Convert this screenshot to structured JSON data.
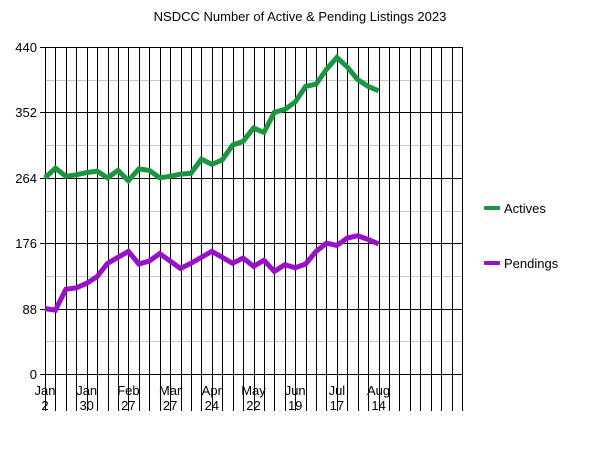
{
  "chart_data": {
    "type": "line",
    "title": "NSDCC Number of Active & Pending Listings 2023",
    "xlabel": "",
    "ylabel": "",
    "ylim": [
      0,
      440
    ],
    "y_ticks": [
      0,
      88,
      176,
      264,
      352,
      440
    ],
    "x_tick_labels": [
      {
        "month": "Jan",
        "day": "2"
      },
      {
        "month": "Jan",
        "day": "30"
      },
      {
        "month": "Feb",
        "day": "27"
      },
      {
        "month": "Mar",
        "day": "27"
      },
      {
        "month": "Apr",
        "day": "24"
      },
      {
        "month": "May",
        "day": "22"
      },
      {
        "month": "Jun",
        "day": "19"
      },
      {
        "month": "Jul",
        "day": "17"
      },
      {
        "month": "Aug",
        "day": "14"
      }
    ],
    "x_tick_every": 4,
    "x_slots": 40,
    "grid": true,
    "legend_position": "right",
    "series": [
      {
        "name": "Actives",
        "color": "#1a9641",
        "values": [
          264,
          277,
          266,
          268,
          271,
          273,
          264,
          274,
          260,
          276,
          274,
          264,
          266,
          269,
          270,
          289,
          282,
          288,
          308,
          313,
          331,
          325,
          352,
          356,
          366,
          387,
          390,
          410,
          426,
          413,
          396,
          387,
          381
        ]
      },
      {
        "name": "Pendings",
        "color": "#9a0fc8",
        "values": [
          88,
          86,
          114,
          116,
          122,
          131,
          149,
          157,
          165,
          148,
          152,
          162,
          152,
          142,
          149,
          157,
          165,
          157,
          149,
          156,
          145,
          153,
          138,
          147,
          143,
          148,
          165,
          176,
          173,
          183,
          186,
          181,
          175
        ]
      }
    ]
  }
}
